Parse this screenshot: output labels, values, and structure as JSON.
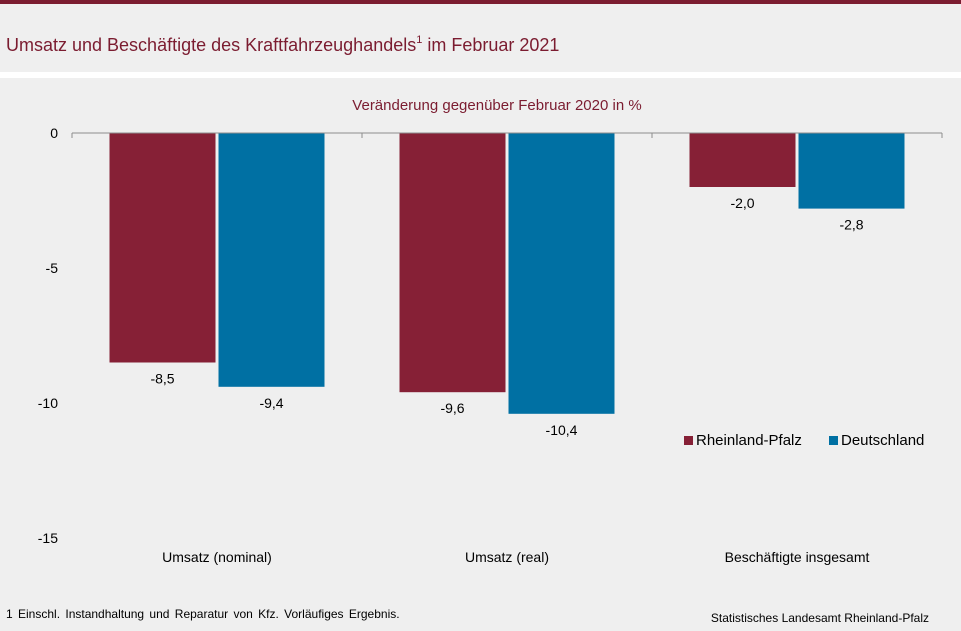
{
  "header": {
    "title_main": "Umsatz und Beschäftigte des Kraftfahrzeughandels",
    "title_sup": "1",
    "title_rest": " im Februar 2021"
  },
  "colors": {
    "accent": "#7b1c30",
    "rheinland_pfalz": "#862036",
    "deutschland": "#0070a3"
  },
  "chart_data": {
    "type": "bar",
    "title": "Veränderung gegenüber Februar 2020 in %",
    "categories": [
      "Umsatz (nominal)",
      "Umsatz (real)",
      "Beschäftigte insgesamt"
    ],
    "series": [
      {
        "name": "Rheinland-Pfalz",
        "values": [
          -8.5,
          -9.6,
          -2.0
        ],
        "labels": [
          "-8,5",
          "-9,6",
          "-2,0"
        ],
        "color": "#862036"
      },
      {
        "name": "Deutschland",
        "values": [
          -9.4,
          -10.4,
          -2.8
        ],
        "labels": [
          "-9,4",
          "-10,4",
          "-2,8"
        ],
        "color": "#0070a3"
      }
    ],
    "ylim": [
      -15,
      0
    ],
    "yticks": [
      0,
      -5,
      -10,
      -15
    ],
    "ytick_labels": [
      "0",
      "-5",
      "-10",
      "-15"
    ],
    "legend_position": "lower-right",
    "grid": false
  },
  "footer": {
    "footnote": "1 Einschl. Instandhaltung und Reparatur von Kfz. Vorläufiges Ergebnis.",
    "source": "Statistisches Landesamt Rheinland-Pfalz"
  }
}
